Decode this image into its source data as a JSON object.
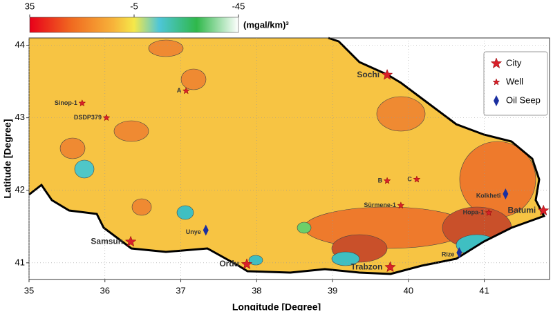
{
  "colorbar": {
    "lim": [
      35,
      -45
    ],
    "ticks": [
      35,
      -5,
      -45
    ],
    "unit": "(mgal/km)³"
  },
  "map": {
    "xlim": [
      35,
      41.86
    ],
    "ylim": [
      40.77,
      44.1
    ],
    "xticks": [
      35,
      36,
      37,
      38,
      39,
      40,
      41
    ],
    "yticks": [
      41,
      42,
      43,
      44
    ],
    "x_label": "Longitude [Degree]",
    "y_label": "Latitude [Degree]"
  },
  "legend": {
    "items": [
      {
        "kind": "city",
        "label": "City"
      },
      {
        "kind": "well",
        "label": "Well"
      },
      {
        "kind": "seep",
        "label": "Oil Seep"
      }
    ]
  },
  "places": [
    {
      "kind": "city",
      "label": "Sochi",
      "lon": 39.72,
      "lat": 43.59
    },
    {
      "kind": "city",
      "label": "Samsun",
      "lon": 36.34,
      "lat": 41.29
    },
    {
      "kind": "city",
      "label": "Ordu",
      "lon": 37.87,
      "lat": 40.98
    },
    {
      "kind": "city",
      "label": "Trabzon",
      "lon": 39.76,
      "lat": 40.94
    },
    {
      "kind": "city",
      "label": "Batumi",
      "lon": 41.78,
      "lat": 41.72
    },
    {
      "kind": "well",
      "label": "Sinop-1",
      "lon": 35.7,
      "lat": 43.2
    },
    {
      "kind": "well",
      "label": "DSDP379",
      "lon": 36.02,
      "lat": 43.0
    },
    {
      "kind": "well",
      "label": "A",
      "lon": 37.07,
      "lat": 43.37
    },
    {
      "kind": "well",
      "label": "B",
      "lon": 39.72,
      "lat": 42.13
    },
    {
      "kind": "well",
      "label": "C",
      "lon": 40.11,
      "lat": 42.15
    },
    {
      "kind": "well",
      "label": "Sürmene-1",
      "lon": 39.9,
      "lat": 41.79
    },
    {
      "kind": "well",
      "label": "Hopa-1",
      "lon": 41.06,
      "lat": 41.69
    },
    {
      "kind": "seep",
      "label": "Unye",
      "lon": 37.33,
      "lat": 41.45
    },
    {
      "kind": "seep",
      "label": "Kolkheti",
      "lon": 41.28,
      "lat": 41.95
    },
    {
      "kind": "seep",
      "label": "Rize",
      "lon": 40.67,
      "lat": 41.14
    }
  ]
}
